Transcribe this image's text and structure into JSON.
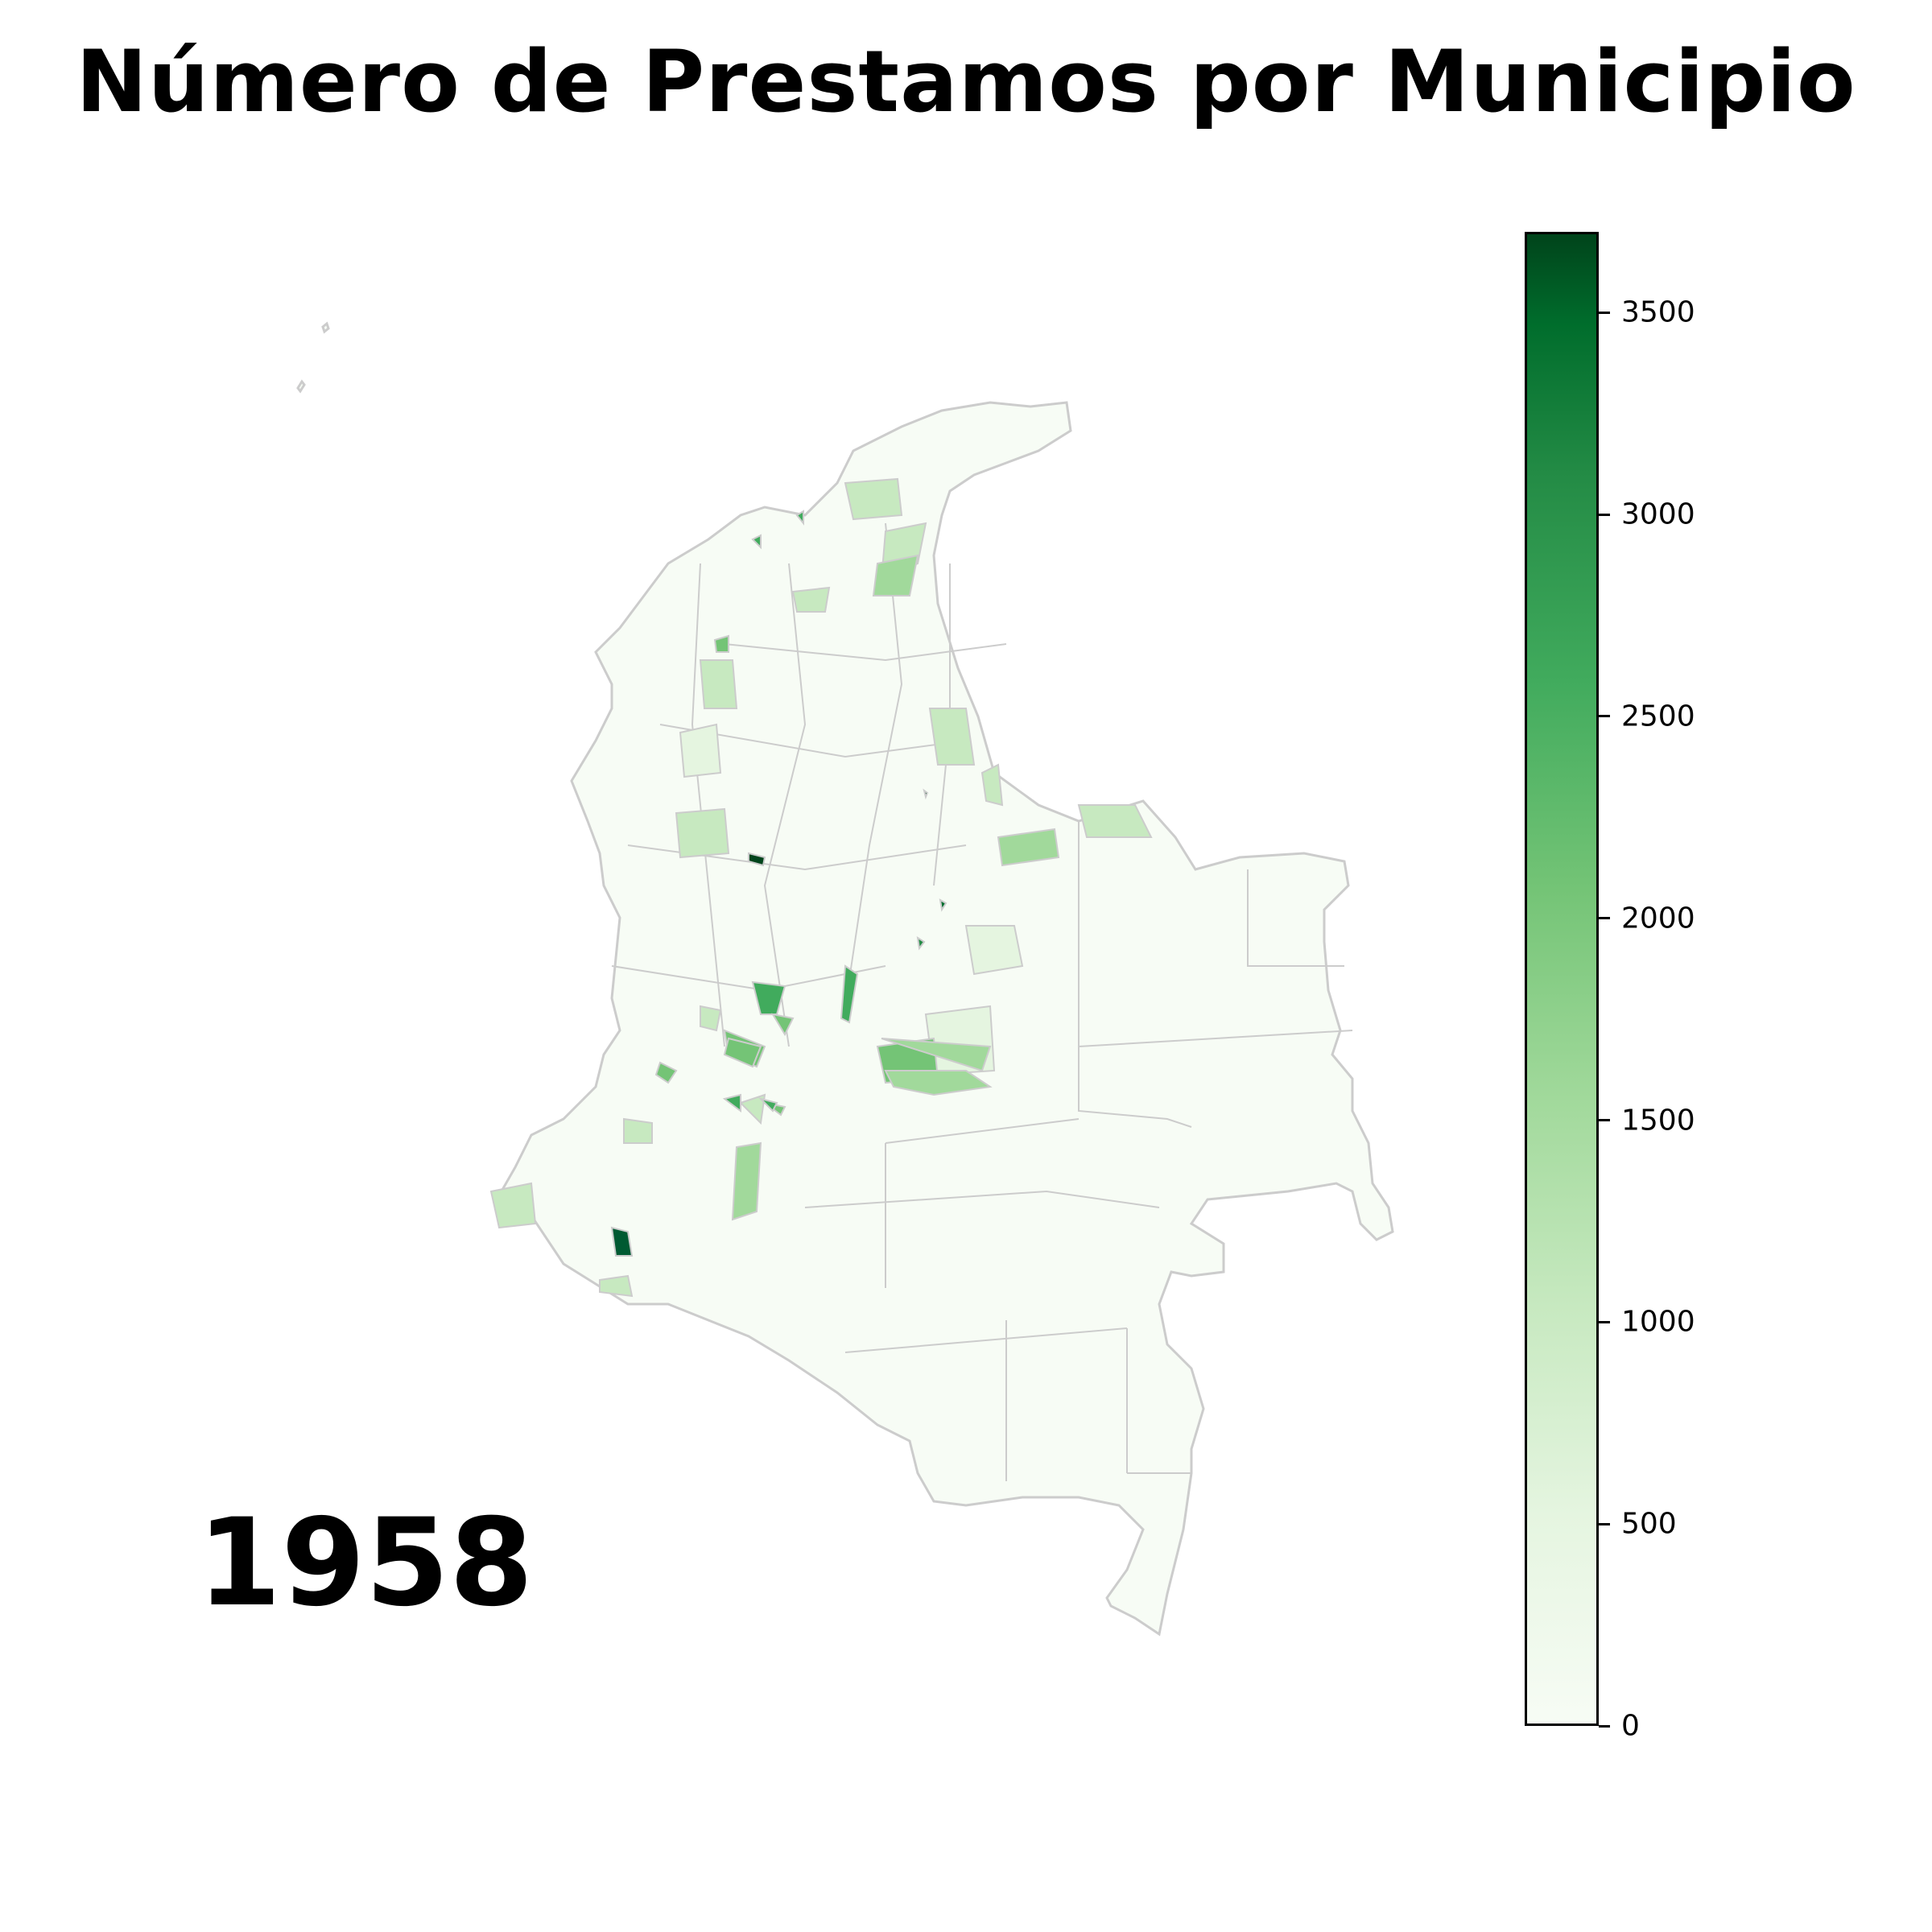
{
  "title": "Número de Prestamos por Municipio",
  "year_label": "1958",
  "colorbar": {
    "colormap": "Greens",
    "min": 0,
    "max": 3700,
    "low_color": "#f7fcf5",
    "high_color": "#00441b",
    "ticks": [
      {
        "value": 0,
        "label": "0"
      },
      {
        "value": 500,
        "label": "500"
      },
      {
        "value": 1000,
        "label": "1000"
      },
      {
        "value": 1500,
        "label": "1500"
      },
      {
        "value": 2000,
        "label": "2000"
      },
      {
        "value": 2500,
        "label": "2500"
      },
      {
        "value": 3000,
        "label": "3000"
      },
      {
        "value": 3500,
        "label": "3500"
      }
    ]
  },
  "map": {
    "region": "Colombia",
    "border_color": "#cccccc"
  }
}
